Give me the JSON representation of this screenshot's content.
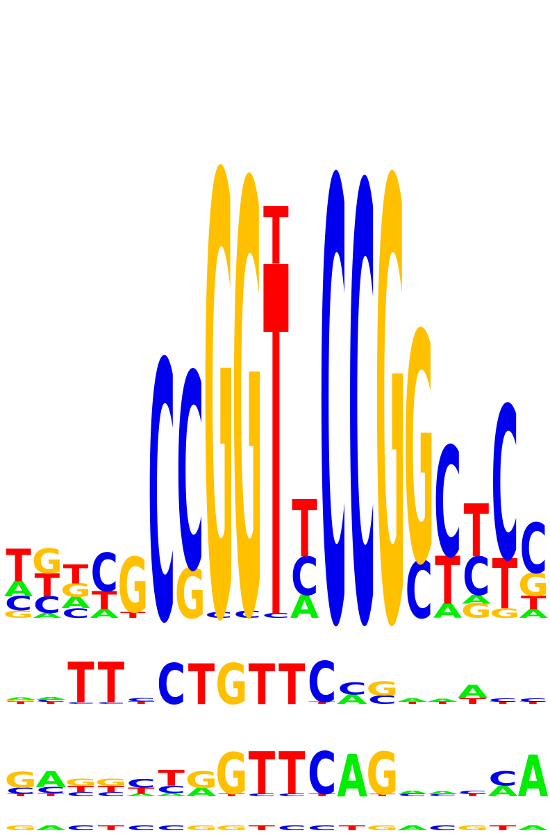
{
  "palette": {
    "A": "#00ee00",
    "C": "#0000ee",
    "G": "#ffc000",
    "T": "#ff0000"
  },
  "logos": [
    {
      "name": "sequence-logo-1",
      "columns": [
        [
          [
            "G",
            0.15
          ],
          [
            "C",
            0.3
          ],
          [
            "A",
            0.32
          ],
          [
            "T",
            0.68
          ]
        ],
        [
          [
            "A",
            0.1
          ],
          [
            "C",
            0.35
          ],
          [
            "T",
            0.48
          ],
          [
            "G",
            0.52
          ]
        ],
        [
          [
            "C",
            0.2
          ],
          [
            "A",
            0.24
          ],
          [
            "G",
            0.28
          ],
          [
            "T",
            0.4
          ]
        ],
        [
          [
            "A",
            0.18
          ],
          [
            "T",
            0.38
          ],
          [
            "C",
            0.8
          ]
        ],
        [
          [
            "T",
            0.12
          ],
          [
            "G",
            1.15
          ]
        ],
        [
          [
            "C",
            5.4
          ]
        ],
        [
          [
            "G",
            1.05
          ],
          [
            "C",
            4.1
          ]
        ],
        [
          [
            "C",
            0.12
          ],
          [
            "G",
            9.2
          ]
        ],
        [
          [
            "C",
            0.15
          ],
          [
            "G",
            9.0
          ]
        ],
        [
          [
            "C",
            0.1
          ],
          [
            "T",
            7.3
          ],
          [
            "T",
            1.2
          ]
        ],
        [
          [
            "A",
            0.48
          ],
          [
            "C",
            0.8
          ],
          [
            "T",
            1.2
          ]
        ],
        [
          [
            "C",
            9.2
          ]
        ],
        [
          [
            "C",
            9.1
          ]
        ],
        [
          [
            "G",
            9.2
          ]
        ],
        [
          [
            "C",
            1.2
          ],
          [
            "G",
            4.8
          ]
        ],
        [
          [
            "A",
            0.3
          ],
          [
            "T",
            1.0
          ],
          [
            "C",
            2.3
          ]
        ],
        [
          [
            "G",
            0.3
          ],
          [
            "A",
            0.18
          ],
          [
            "C",
            0.8
          ],
          [
            "T",
            1.1
          ]
        ],
        [
          [
            "G",
            0.2
          ],
          [
            "T",
            1.05
          ],
          [
            "C",
            3.2
          ]
        ],
        [
          [
            "A",
            0.18
          ],
          [
            "T",
            0.28
          ],
          [
            "G",
            0.48
          ],
          [
            "C",
            1.05
          ]
        ]
      ]
    },
    {
      "name": "sequence-logo-2",
      "columns": [
        [
          [
            "T",
            0.06
          ],
          [
            "G",
            0.04
          ],
          [
            "A",
            0.05
          ]
        ],
        [
          [
            "T",
            0.05
          ],
          [
            "C",
            0.05
          ],
          [
            "A",
            0.06
          ]
        ],
        [
          [
            "C",
            0.04
          ],
          [
            "T",
            0.95
          ]
        ],
        [
          [
            "C",
            0.04
          ],
          [
            "T",
            0.95
          ]
        ],
        [
          [
            "T",
            0.06
          ],
          [
            "C",
            0.08
          ]
        ],
        [
          [
            "C",
            0.95
          ]
        ],
        [
          [
            "T",
            0.95
          ]
        ],
        [
          [
            "G",
            0.95
          ]
        ],
        [
          [
            "T",
            0.95
          ]
        ],
        [
          [
            "T",
            0.95
          ]
        ],
        [
          [
            "T",
            0.05
          ],
          [
            "C",
            0.95
          ]
        ],
        [
          [
            "A",
            0.22
          ],
          [
            "C",
            0.28
          ]
        ],
        [
          [
            "C",
            0.2
          ],
          [
            "G",
            0.32
          ]
        ],
        [
          [
            "T",
            0.05
          ],
          [
            "A",
            0.08
          ]
        ],
        [
          [
            "T",
            0.05
          ],
          [
            "A",
            0.07
          ]
        ],
        [
          [
            "T",
            0.14
          ],
          [
            "A",
            0.3
          ]
        ],
        [
          [
            "T",
            0.05
          ],
          [
            "C",
            0.08
          ]
        ],
        [
          [
            "T",
            0.05
          ],
          [
            "C",
            0.08
          ]
        ]
      ]
    },
    {
      "name": "sequence-logo-3",
      "columns": [
        [
          [
            "T",
            0.05
          ],
          [
            "C",
            0.12
          ],
          [
            "G",
            0.3
          ]
        ],
        [
          [
            "T",
            0.06
          ],
          [
            "C",
            0.12
          ],
          [
            "A",
            0.3
          ]
        ],
        [
          [
            "C",
            0.08
          ],
          [
            "T",
            0.12
          ],
          [
            "G",
            0.14
          ]
        ],
        [
          [
            "C",
            0.08
          ],
          [
            "T",
            0.12
          ],
          [
            "G",
            0.14
          ]
        ],
        [
          [
            "A",
            0.05
          ],
          [
            "T",
            0.12
          ],
          [
            "C",
            0.16
          ]
        ],
        [
          [
            "A",
            0.06
          ],
          [
            "C",
            0.14
          ],
          [
            "T",
            0.3
          ]
        ],
        [
          [
            "A",
            0.16
          ],
          [
            "G",
            0.32
          ]
        ],
        [
          [
            "T",
            0.05
          ],
          [
            "G",
            0.8
          ]
        ],
        [
          [
            "C",
            0.05
          ],
          [
            "T",
            0.82
          ]
        ],
        [
          [
            "C",
            0.05
          ],
          [
            "T",
            0.82
          ]
        ],
        [
          [
            "T",
            0.05
          ],
          [
            "C",
            0.82
          ]
        ],
        [
          [
            "A",
            0.82
          ]
        ],
        [
          [
            "T",
            0.04
          ],
          [
            "G",
            0.82
          ]
        ],
        [
          [
            "C",
            0.05
          ],
          [
            "A",
            0.06
          ]
        ],
        [
          [
            "C",
            0.04
          ],
          [
            "A",
            0.06
          ]
        ],
        [
          [
            "T",
            0.05
          ],
          [
            "C",
            0.06
          ]
        ],
        [
          [
            "A",
            0.2
          ],
          [
            "C",
            0.28
          ]
        ],
        [
          [
            "A",
            0.8
          ]
        ]
      ]
    },
    {
      "name": "sequence-logo-4",
      "columns": [
        [
          [
            "G",
            0.12
          ]
        ],
        [
          [
            "A",
            0.12
          ]
        ],
        [
          [
            "C",
            0.12
          ]
        ],
        [
          [
            "T",
            0.12
          ]
        ],
        [
          [
            "C",
            0.12
          ]
        ],
        [
          [
            "C",
            0.12
          ]
        ],
        [
          [
            "G",
            0.12
          ]
        ],
        [
          [
            "G",
            0.12
          ]
        ],
        [
          [
            "T",
            0.12
          ]
        ],
        [
          [
            "C",
            0.12
          ]
        ],
        [
          [
            "C",
            0.12
          ]
        ],
        [
          [
            "T",
            0.12
          ]
        ],
        [
          [
            "G",
            0.12
          ]
        ],
        [
          [
            "A",
            0.12
          ]
        ],
        [
          [
            "C",
            0.12
          ]
        ],
        [
          [
            "G",
            0.12
          ]
        ],
        [
          [
            "T",
            0.12
          ]
        ],
        [
          [
            "A",
            0.12
          ]
        ]
      ]
    }
  ]
}
